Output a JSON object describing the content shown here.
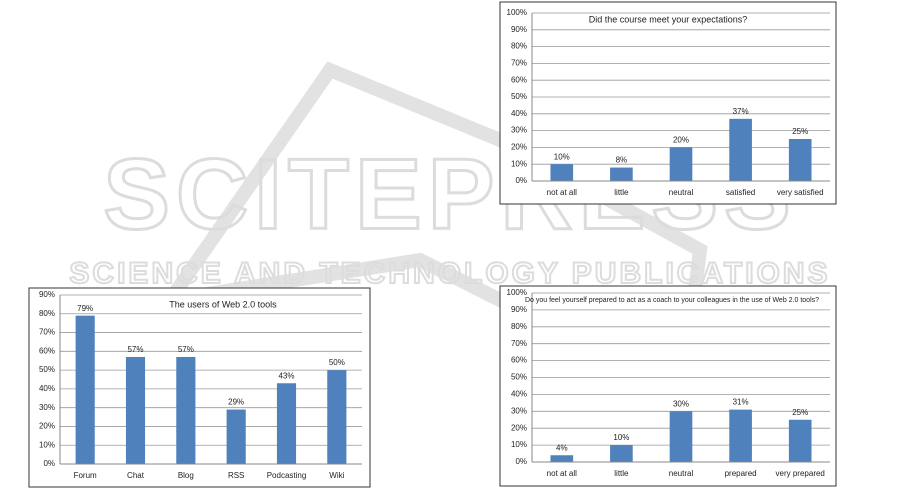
{
  "watermark": {
    "title": "SCITEPRESS",
    "subtitle": "SCIENCE AND TECHNOLOGY PUBLICATIONS"
  },
  "chart_data": [
    {
      "type": "bar",
      "title": "Did the course meet your expectations?",
      "categories": [
        "not at all",
        "little",
        "neutral",
        "satisfied",
        "very satisfied"
      ],
      "values": [
        10,
        8,
        20,
        37,
        25
      ],
      "value_labels": [
        "10%",
        "8%",
        "20%",
        "37%",
        "25%"
      ],
      "color": "#4f81bd",
      "ylim": [
        0,
        100
      ],
      "yticks": [
        {
          "value": 0,
          "label": "0%"
        },
        {
          "value": 10,
          "label": "10%"
        },
        {
          "value": 20,
          "label": "20%"
        },
        {
          "value": 30,
          "label": "30%"
        },
        {
          "value": 40,
          "label": "40%"
        },
        {
          "value": 50,
          "label": "50%"
        },
        {
          "value": 60,
          "label": "60%"
        },
        {
          "value": 70,
          "label": "70%"
        },
        {
          "value": 80,
          "label": "80%"
        },
        {
          "value": 90,
          "label": "90%"
        },
        {
          "value": 100,
          "label": "100%"
        }
      ],
      "grid": true
    },
    {
      "type": "bar",
      "title": "The users of Web 2.0 tools",
      "categories": [
        "Forum",
        "Chat",
        "Blog",
        "RSS",
        "Podcasting",
        "Wiki"
      ],
      "values": [
        79,
        57,
        57,
        29,
        43,
        50
      ],
      "value_labels": [
        "79%",
        "57%",
        "57%",
        "29%",
        "43%",
        "50%"
      ],
      "color": "#4f81bd",
      "ylim": [
        0,
        90
      ],
      "yticks": [
        {
          "value": 0,
          "label": "0%"
        },
        {
          "value": 10,
          "label": "10%"
        },
        {
          "value": 20,
          "label": "20%"
        },
        {
          "value": 30,
          "label": "30%"
        },
        {
          "value": 40,
          "label": "40%"
        },
        {
          "value": 50,
          "label": "50%"
        },
        {
          "value": 60,
          "label": "60%"
        },
        {
          "value": 70,
          "label": "70%"
        },
        {
          "value": 80,
          "label": "80%"
        },
        {
          "value": 90,
          "label": "90%"
        }
      ],
      "grid": true
    },
    {
      "type": "bar",
      "title": "Do you feel yourself prepared to act as a coach to your colleagues in the use of Web 2.0 tools?",
      "categories": [
        "not at all",
        "little",
        "neutral",
        "prepared",
        "very prepared"
      ],
      "values": [
        4,
        10,
        30,
        31,
        25
      ],
      "value_labels": [
        "4%",
        "10%",
        "30%",
        "31%",
        "25%"
      ],
      "color": "#4f81bd",
      "ylim": [
        0,
        100
      ],
      "yticks": [
        {
          "value": 0,
          "label": "0%"
        },
        {
          "value": 10,
          "label": "10%"
        },
        {
          "value": 20,
          "label": "20%"
        },
        {
          "value": 30,
          "label": "30%"
        },
        {
          "value": 40,
          "label": "40%"
        },
        {
          "value": 50,
          "label": "50%"
        },
        {
          "value": 60,
          "label": "60%"
        },
        {
          "value": 70,
          "label": "70%"
        },
        {
          "value": 80,
          "label": "80%"
        },
        {
          "value": 90,
          "label": "90%"
        },
        {
          "value": 100,
          "label": "100%"
        }
      ],
      "grid": true
    }
  ]
}
